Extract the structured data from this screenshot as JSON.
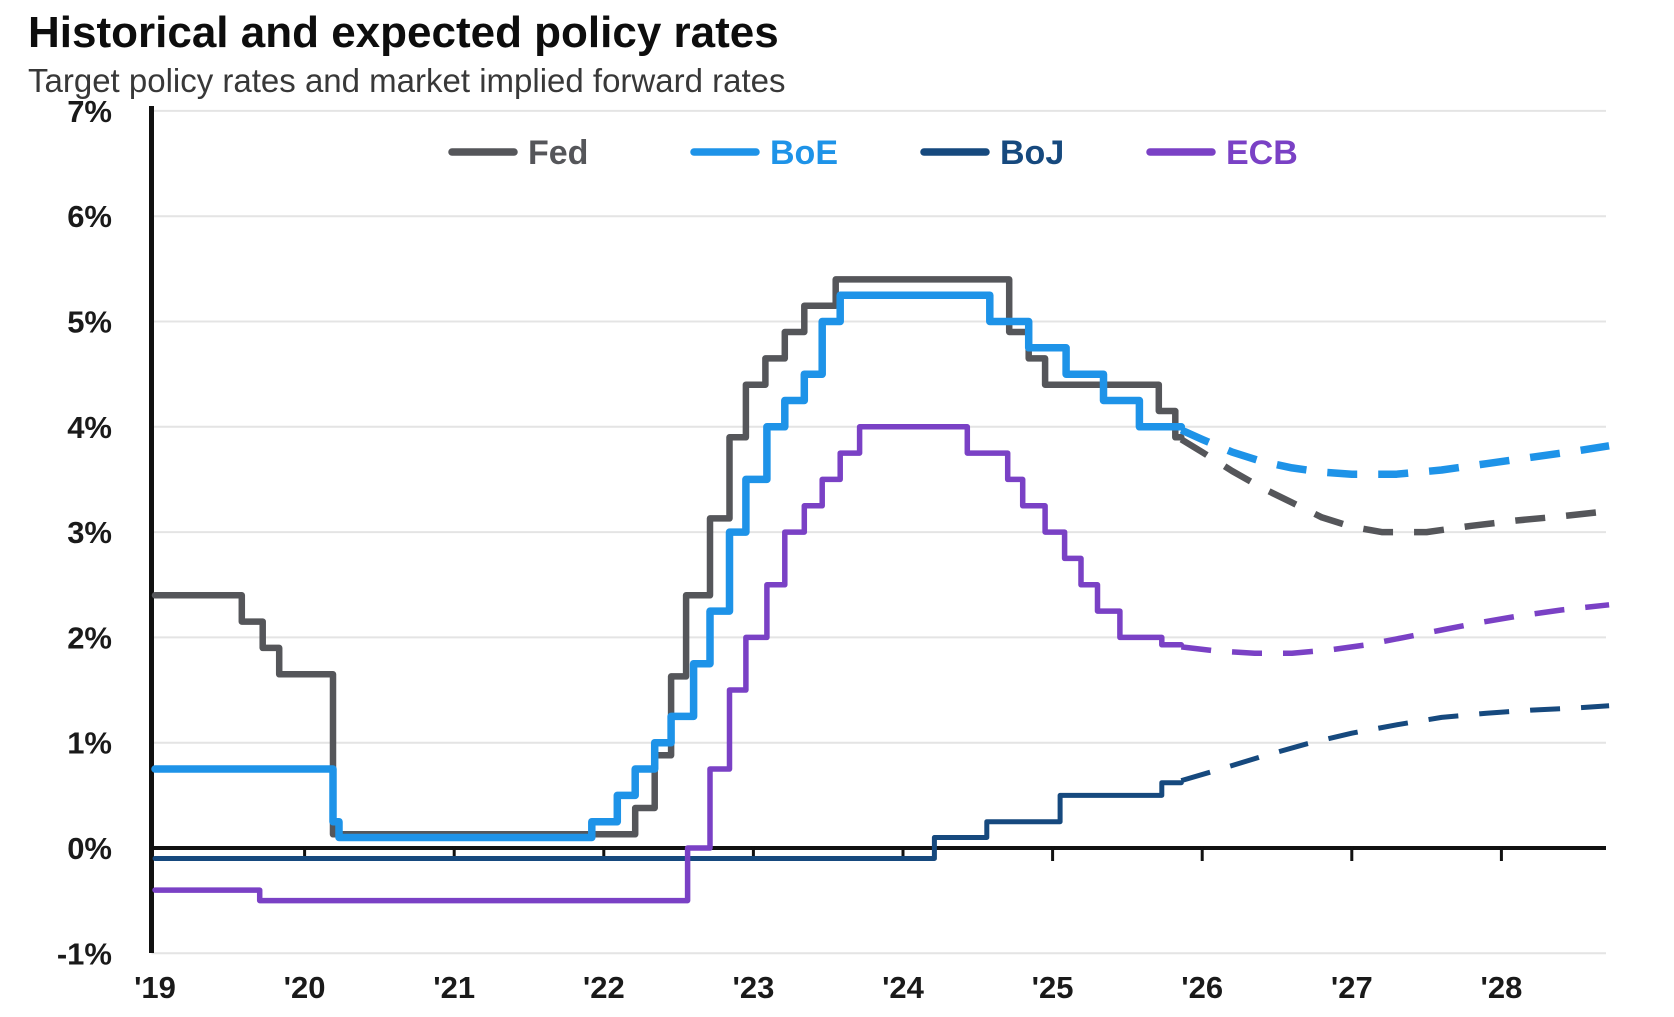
{
  "title": "Historical and expected policy rates",
  "subtitle": "Target policy rates and market implied forward rates",
  "colors": {
    "background": "#ffffff",
    "grid": "#e4e4e4",
    "axis": "#111111",
    "zero_line": "#111111",
    "tick_label": "#1a1a1a",
    "fed": "#55565A",
    "boe": "#1E93E8",
    "boj": "#16497E",
    "ecb": "#7A41C5"
  },
  "chart_data": {
    "type": "line",
    "title": "Historical and expected policy rates",
    "subtitle": "Target policy rates and market implied forward rates",
    "xlabel": "",
    "ylabel": "",
    "xlim": [
      2019.0,
      2028.72
    ],
    "ylim": [
      -1,
      7
    ],
    "grid": "horizontal",
    "legend": {
      "position": "top-center",
      "entries": [
        "Fed",
        "BoE",
        "BoJ",
        "ECB"
      ]
    },
    "x_ticks": {
      "values": [
        2019,
        2020,
        2021,
        2022,
        2023,
        2024,
        2025,
        2026,
        2027,
        2028
      ],
      "labels": [
        "'19",
        "'20",
        "'21",
        "'22",
        "'23",
        "'24",
        "'25",
        "'26",
        "'27",
        "'28"
      ]
    },
    "y_ticks": {
      "values": [
        7,
        6,
        5,
        4,
        3,
        2,
        1,
        0,
        -1
      ],
      "labels": [
        "7%",
        "6%",
        "5%",
        "4%",
        "3%",
        "2%",
        "1%",
        "0%",
        "-1%"
      ]
    },
    "forward_start": 2025.86,
    "series": [
      {
        "name": "Fed",
        "color": "#55565A",
        "historical_style": "solid",
        "forward_style": "dashed",
        "historical_steps": [
          [
            2019.0,
            2.4
          ],
          [
            2019.58,
            2.15
          ],
          [
            2019.72,
            1.9
          ],
          [
            2019.83,
            1.65
          ],
          [
            2020.19,
            0.13
          ],
          [
            2022.21,
            0.38
          ],
          [
            2022.34,
            0.88
          ],
          [
            2022.45,
            1.63
          ],
          [
            2022.55,
            2.4
          ],
          [
            2022.71,
            3.13
          ],
          [
            2022.84,
            3.9
          ],
          [
            2022.95,
            4.4
          ],
          [
            2023.08,
            4.65
          ],
          [
            2023.21,
            4.9
          ],
          [
            2023.34,
            5.15
          ],
          [
            2023.55,
            5.4
          ],
          [
            2024.71,
            4.9
          ],
          [
            2024.84,
            4.65
          ],
          [
            2024.95,
            4.4
          ],
          [
            2025.71,
            4.15
          ],
          [
            2025.82,
            3.9
          ]
        ],
        "historical_end": 2025.86,
        "forward": [
          [
            2025.86,
            3.88
          ],
          [
            2026.0,
            3.76
          ],
          [
            2026.2,
            3.58
          ],
          [
            2026.4,
            3.42
          ],
          [
            2026.6,
            3.28
          ],
          [
            2026.8,
            3.14
          ],
          [
            2027.0,
            3.05
          ],
          [
            2027.2,
            3.0
          ],
          [
            2027.5,
            3.0
          ],
          [
            2027.8,
            3.06
          ],
          [
            2028.1,
            3.11
          ],
          [
            2028.4,
            3.15
          ],
          [
            2028.72,
            3.2
          ]
        ]
      },
      {
        "name": "BoE",
        "color": "#1E93E8",
        "historical_style": "solid",
        "forward_style": "dashed",
        "historical_steps": [
          [
            2019.0,
            0.75
          ],
          [
            2020.19,
            0.25
          ],
          [
            2020.23,
            0.1
          ],
          [
            2021.92,
            0.25
          ],
          [
            2022.09,
            0.5
          ],
          [
            2022.21,
            0.75
          ],
          [
            2022.34,
            1.0
          ],
          [
            2022.45,
            1.25
          ],
          [
            2022.6,
            1.75
          ],
          [
            2022.71,
            2.25
          ],
          [
            2022.84,
            3.0
          ],
          [
            2022.95,
            3.5
          ],
          [
            2023.09,
            4.0
          ],
          [
            2023.21,
            4.25
          ],
          [
            2023.34,
            4.5
          ],
          [
            2023.46,
            5.0
          ],
          [
            2023.58,
            5.25
          ],
          [
            2024.58,
            5.0
          ],
          [
            2024.84,
            4.75
          ],
          [
            2025.09,
            4.5
          ],
          [
            2025.34,
            4.25
          ],
          [
            2025.58,
            4.0
          ]
        ],
        "historical_end": 2025.86,
        "forward": [
          [
            2025.86,
            3.97
          ],
          [
            2026.0,
            3.88
          ],
          [
            2026.2,
            3.76
          ],
          [
            2026.4,
            3.67
          ],
          [
            2026.6,
            3.61
          ],
          [
            2026.8,
            3.57
          ],
          [
            2027.0,
            3.55
          ],
          [
            2027.3,
            3.55
          ],
          [
            2027.6,
            3.59
          ],
          [
            2027.9,
            3.65
          ],
          [
            2028.2,
            3.71
          ],
          [
            2028.5,
            3.77
          ],
          [
            2028.72,
            3.82
          ]
        ]
      },
      {
        "name": "BoJ",
        "color": "#16497E",
        "historical_style": "solid",
        "forward_style": "dashed",
        "historical_steps": [
          [
            2019.0,
            -0.1
          ],
          [
            2024.21,
            0.1
          ],
          [
            2024.56,
            0.25
          ],
          [
            2025.05,
            0.5
          ],
          [
            2025.73,
            0.62
          ]
        ],
        "historical_end": 2025.86,
        "forward": [
          [
            2025.86,
            0.64
          ],
          [
            2026.1,
            0.74
          ],
          [
            2026.4,
            0.87
          ],
          [
            2026.7,
            0.99
          ],
          [
            2027.0,
            1.09
          ],
          [
            2027.3,
            1.17
          ],
          [
            2027.6,
            1.24
          ],
          [
            2027.9,
            1.28
          ],
          [
            2028.2,
            1.31
          ],
          [
            2028.5,
            1.33
          ],
          [
            2028.72,
            1.35
          ]
        ]
      },
      {
        "name": "ECB",
        "color": "#7A41C5",
        "historical_style": "solid",
        "forward_style": "dashed",
        "historical_steps": [
          [
            2019.0,
            -0.4
          ],
          [
            2019.7,
            -0.5
          ],
          [
            2022.56,
            0.0
          ],
          [
            2022.71,
            0.75
          ],
          [
            2022.84,
            1.5
          ],
          [
            2022.95,
            2.0
          ],
          [
            2023.09,
            2.5
          ],
          [
            2023.21,
            3.0
          ],
          [
            2023.34,
            3.25
          ],
          [
            2023.46,
            3.5
          ],
          [
            2023.58,
            3.75
          ],
          [
            2023.71,
            4.0
          ],
          [
            2024.43,
            3.75
          ],
          [
            2024.7,
            3.5
          ],
          [
            2024.8,
            3.25
          ],
          [
            2024.95,
            3.0
          ],
          [
            2025.08,
            2.75
          ],
          [
            2025.19,
            2.5
          ],
          [
            2025.3,
            2.25
          ],
          [
            2025.45,
            2.0
          ],
          [
            2025.73,
            1.93
          ]
        ],
        "historical_end": 2025.86,
        "forward": [
          [
            2025.86,
            1.91
          ],
          [
            2026.1,
            1.87
          ],
          [
            2026.35,
            1.85
          ],
          [
            2026.6,
            1.85
          ],
          [
            2026.85,
            1.88
          ],
          [
            2027.1,
            1.93
          ],
          [
            2027.35,
            2.0
          ],
          [
            2027.6,
            2.07
          ],
          [
            2027.85,
            2.14
          ],
          [
            2028.1,
            2.2
          ],
          [
            2028.4,
            2.26
          ],
          [
            2028.72,
            2.31
          ]
        ]
      }
    ]
  }
}
